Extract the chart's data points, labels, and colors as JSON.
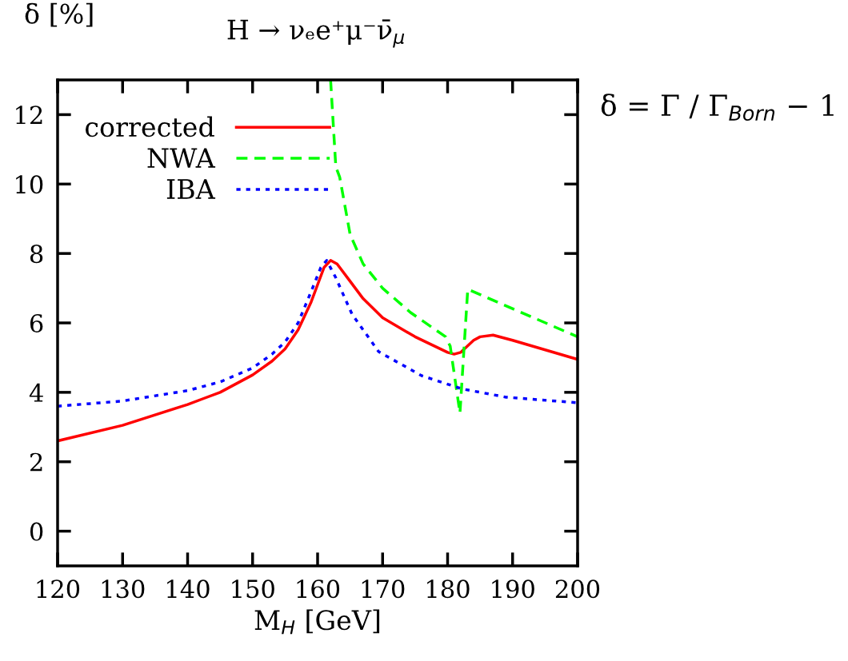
{
  "chart_data": {
    "type": "line",
    "title": "H → νₑe⁺μ⁻ν̄$_{μ}$",
    "ylabel": "δ [%]",
    "xlabel": "M$_{H}$ [GeV]",
    "annotations": [
      "δ = Γ / Γ$_{Born}$ − 1"
    ],
    "xlim": [
      120,
      200
    ],
    "xticks": [
      120,
      130,
      140,
      150,
      160,
      170,
      180,
      190,
      200
    ],
    "ylim": [
      -1,
      13
    ],
    "yticks": [
      0,
      2,
      4,
      6,
      8,
      10,
      12
    ],
    "grid": false,
    "legend": "top left",
    "series": [
      {
        "name": "corrected",
        "color": "#ff0000",
        "line_style": "solid",
        "x": [
          120,
          130,
          140,
          145,
          150,
          153,
          155,
          157,
          159,
          161,
          162,
          163,
          165,
          167,
          170,
          175,
          180,
          181,
          182,
          184,
          185,
          187,
          190,
          200
        ],
        "values": [
          2.6,
          3.05,
          3.65,
          4.0,
          4.5,
          4.9,
          5.25,
          5.8,
          6.6,
          7.6,
          7.8,
          7.7,
          7.2,
          6.7,
          6.15,
          5.6,
          5.15,
          5.1,
          5.15,
          5.5,
          5.6,
          5.65,
          5.5,
          4.95
        ]
      },
      {
        "name": "NWA",
        "color": "#00ff00",
        "line_style": "dashed",
        "x": [
          162,
          162.8,
          163.4,
          165,
          167,
          170,
          174.3,
          179.7,
          180.4,
          181.9,
          183.1,
          200
        ],
        "values": [
          13,
          10.5,
          10.2,
          8.55,
          7.7,
          7.0,
          6.3,
          5.6,
          5.33,
          3.4,
          6.97,
          5.6
        ]
      },
      {
        "name": "IBA",
        "color": "#0000ff",
        "line_style": "dotted",
        "x": [
          120,
          130,
          140,
          145,
          150,
          153,
          155,
          157,
          159,
          160.5,
          161.4,
          162.8,
          165.3,
          169.4,
          176,
          182.2,
          189,
          200
        ],
        "values": [
          3.6,
          3.75,
          4.05,
          4.3,
          4.7,
          5.1,
          5.45,
          6.0,
          6.9,
          7.6,
          7.8,
          7.3,
          6.25,
          5.17,
          4.48,
          4.1,
          3.86,
          3.7
        ]
      }
    ]
  }
}
